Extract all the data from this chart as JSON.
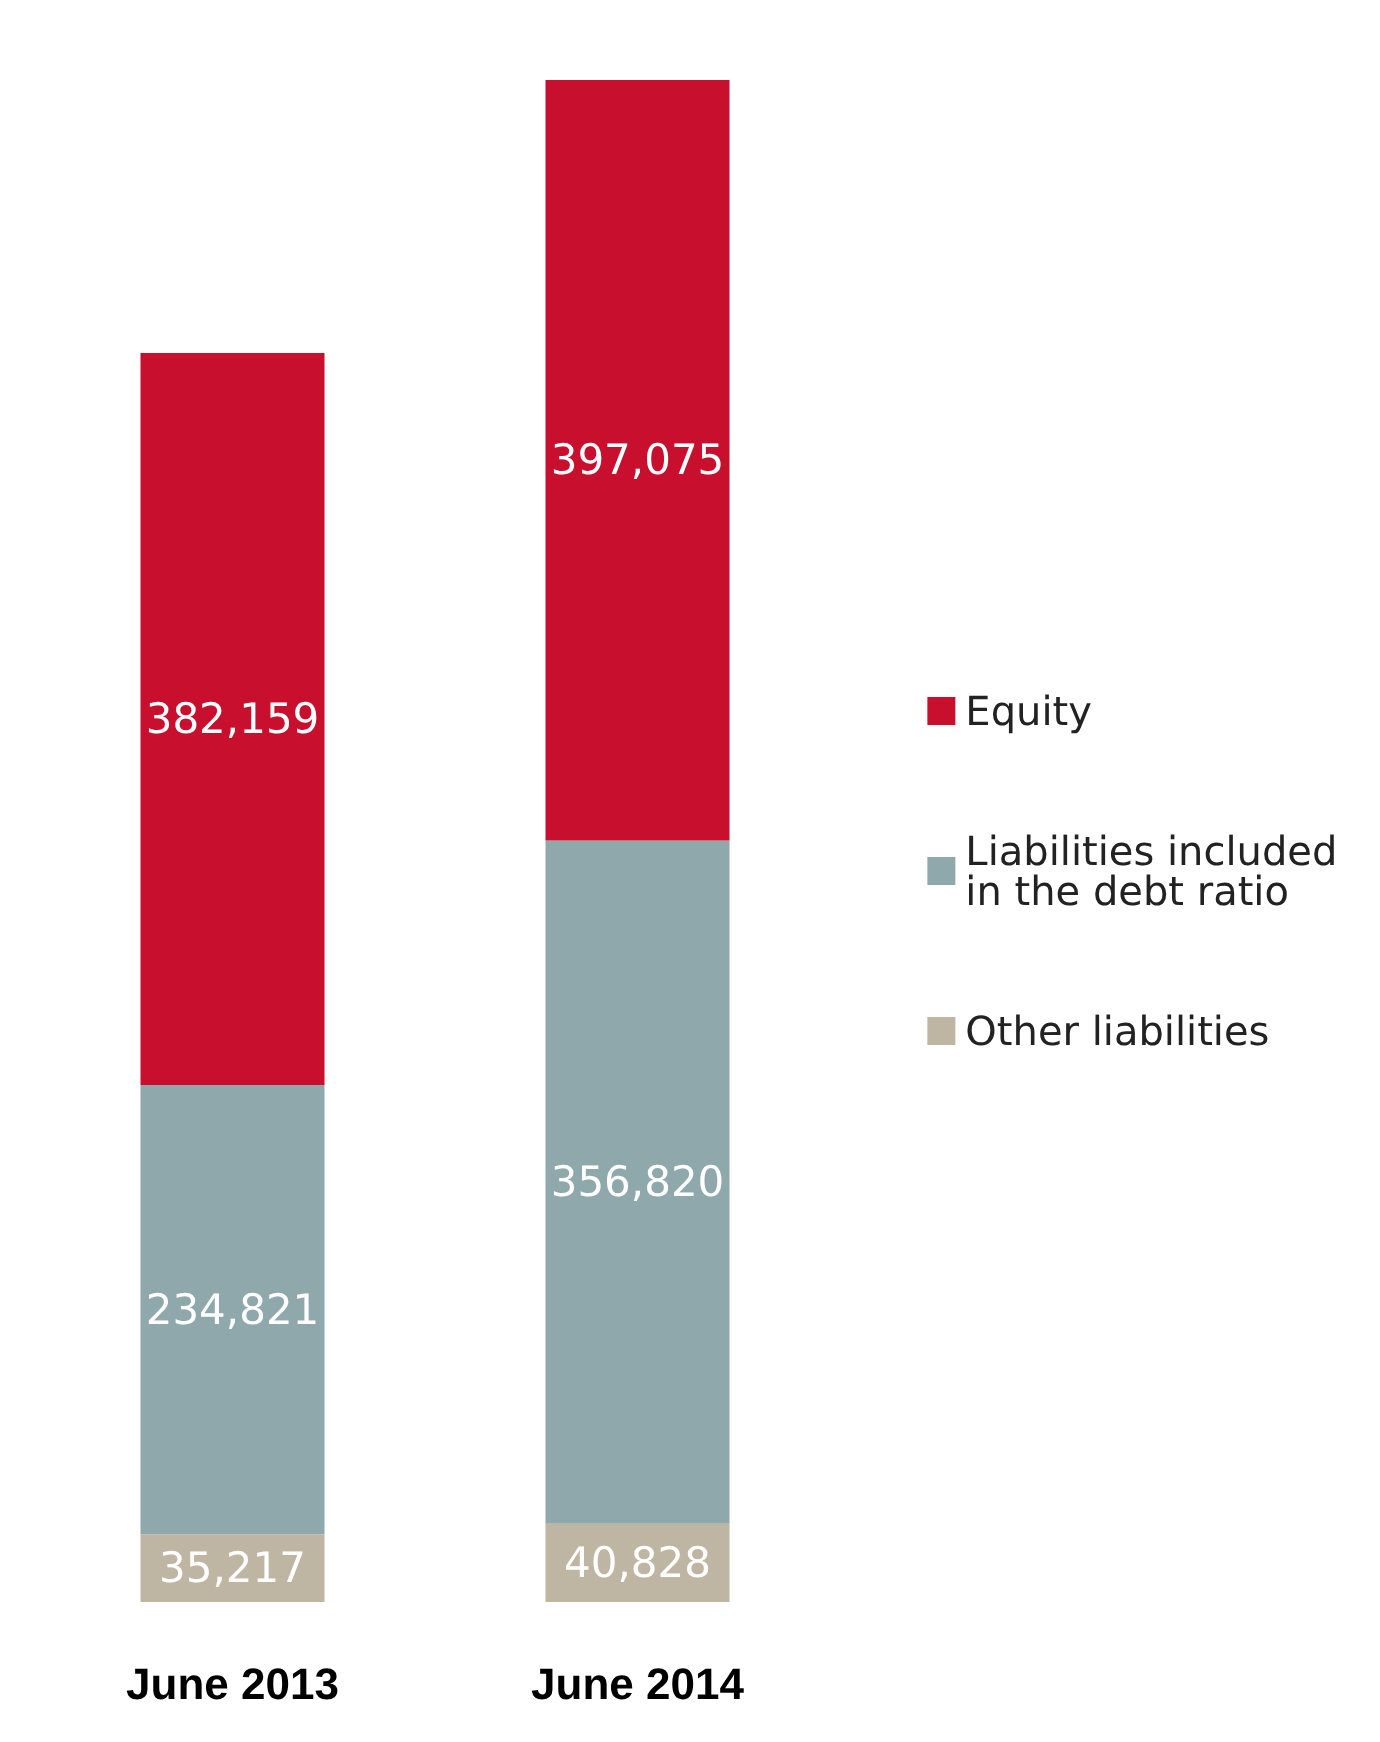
{
  "chart_data": {
    "type": "bar",
    "stacked": true,
    "categories": [
      "June 2013",
      "June 2014"
    ],
    "series": [
      {
        "name": "Other liabilities",
        "color": "#bfb5a3",
        "values": [
          35217,
          40828
        ],
        "value_labels": [
          "35,217",
          "40,828"
        ]
      },
      {
        "name": "Liabilities included in the debt ratio",
        "color": "#8fa8ab",
        "values": [
          234821,
          356820
        ],
        "value_labels": [
          "234,821",
          "356,820"
        ]
      },
      {
        "name": "Equity",
        "color": "#c8102e",
        "values": [
          382159,
          397075
        ],
        "value_labels": [
          "382,159",
          "397,075"
        ]
      }
    ],
    "legend": "right",
    "tick_labels": "x"
  }
}
